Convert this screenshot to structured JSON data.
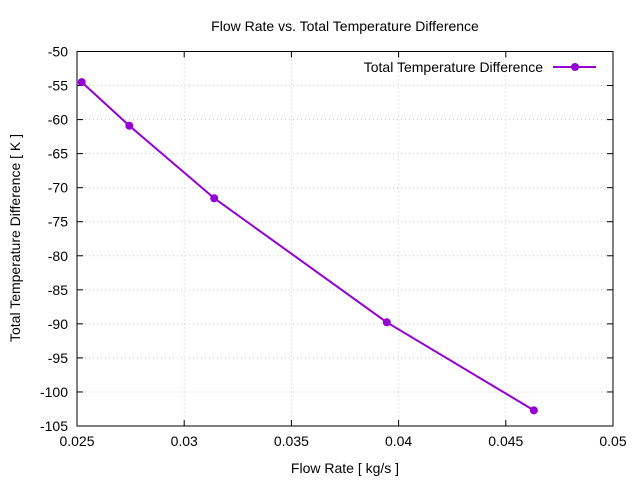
{
  "chart_data": {
    "type": "line",
    "title": "Flow Rate vs. Total Temperature Difference",
    "xlabel": "Flow Rate [ kg/s ]",
    "ylabel": "Total Temperature Difference [ K ]",
    "xlim": [
      0.025,
      0.05
    ],
    "ylim": [
      -105,
      -50
    ],
    "xticks": [
      0.025,
      0.03,
      0.035,
      0.04,
      0.045,
      0.05
    ],
    "xtick_labels": [
      "0.025",
      "0.03",
      "0.035",
      "0.04",
      "0.045",
      "0.05"
    ],
    "yticks": [
      -105,
      -100,
      -95,
      -90,
      -85,
      -80,
      -75,
      -70,
      -65,
      -60,
      -55,
      -50
    ],
    "ytick_labels": [
      "-105",
      "-100",
      "-95",
      "-90",
      "-85",
      "-80",
      "-75",
      "-70",
      "-65",
      "-60",
      "-55",
      "-50"
    ],
    "grid": true,
    "legend_position": "top-right",
    "series": [
      {
        "name": "Total Temperature Difference",
        "color": "#9400d3",
        "x": [
          0.02522,
          0.02744,
          0.0314,
          0.03945,
          0.04631
        ],
        "y": [
          -54.5,
          -60.9,
          -71.55,
          -89.77,
          -102.7
        ]
      }
    ]
  }
}
